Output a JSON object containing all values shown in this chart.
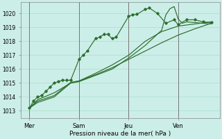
{
  "xlabel": "Pression niveau de la mer( hPa )",
  "ylim": [
    1012.5,
    1020.8
  ],
  "xlim": [
    0,
    96
  ],
  "yticks": [
    1013,
    1014,
    1015,
    1016,
    1017,
    1018,
    1019,
    1020
  ],
  "xtick_positions": [
    4,
    28,
    52,
    76
  ],
  "xtick_labels": [
    "Mer",
    "Sam",
    "Jeu",
    "Ven"
  ],
  "vline_positions": [
    4,
    28,
    52,
    76
  ],
  "bg_color": "#cceee8",
  "grid_color": "#aaddcc",
  "line_color": "#2d6e2d",
  "series1": [
    [
      4,
      1013.2
    ],
    [
      6,
      1013.7
    ],
    [
      8,
      1014.0
    ],
    [
      10,
      1014.1
    ],
    [
      12,
      1014.4
    ],
    [
      14,
      1014.7
    ],
    [
      16,
      1015.0
    ],
    [
      18,
      1015.1
    ],
    [
      20,
      1015.2
    ],
    [
      22,
      1015.2
    ],
    [
      24,
      1015.2
    ],
    [
      28,
      1016.7
    ],
    [
      30,
      1017.0
    ],
    [
      32,
      1017.3
    ],
    [
      36,
      1018.2
    ],
    [
      38,
      1018.3
    ],
    [
      40,
      1018.5
    ],
    [
      42,
      1018.5
    ],
    [
      44,
      1018.2
    ],
    [
      46,
      1018.3
    ],
    [
      52,
      1019.8
    ],
    [
      54,
      1019.9
    ],
    [
      56,
      1019.95
    ],
    [
      60,
      1020.3
    ],
    [
      62,
      1020.4
    ],
    [
      66,
      1020.0
    ],
    [
      70,
      1019.3
    ],
    [
      74,
      1019.55
    ],
    [
      76,
      1019.2
    ],
    [
      80,
      1019.55
    ],
    [
      84,
      1019.55
    ],
    [
      88,
      1019.4
    ],
    [
      92,
      1019.35
    ]
  ],
  "series2": [
    [
      4,
      1013.2
    ],
    [
      8,
      1013.8
    ],
    [
      16,
      1014.3
    ],
    [
      24,
      1015.0
    ],
    [
      28,
      1015.15
    ],
    [
      36,
      1015.6
    ],
    [
      44,
      1016.1
    ],
    [
      52,
      1016.7
    ],
    [
      60,
      1017.3
    ],
    [
      68,
      1017.9
    ],
    [
      76,
      1018.45
    ],
    [
      84,
      1018.9
    ],
    [
      92,
      1019.3
    ]
  ],
  "series3": [
    [
      4,
      1013.2
    ],
    [
      8,
      1013.6
    ],
    [
      16,
      1014.0
    ],
    [
      24,
      1015.0
    ],
    [
      28,
      1015.1
    ],
    [
      36,
      1015.55
    ],
    [
      44,
      1016.0
    ],
    [
      52,
      1016.8
    ],
    [
      60,
      1017.7
    ],
    [
      68,
      1018.8
    ],
    [
      70,
      1019.9
    ],
    [
      72,
      1020.35
    ],
    [
      74,
      1020.5
    ],
    [
      76,
      1019.6
    ],
    [
      78,
      1019.3
    ],
    [
      80,
      1019.4
    ],
    [
      84,
      1019.35
    ],
    [
      88,
      1019.3
    ],
    [
      92,
      1019.25
    ]
  ],
  "series4": [
    [
      4,
      1013.2
    ],
    [
      8,
      1013.7
    ],
    [
      16,
      1014.1
    ],
    [
      24,
      1015.05
    ],
    [
      28,
      1015.15
    ],
    [
      36,
      1015.7
    ],
    [
      44,
      1016.3
    ],
    [
      52,
      1017.0
    ],
    [
      60,
      1018.0
    ],
    [
      68,
      1018.7
    ],
    [
      76,
      1019.1
    ],
    [
      84,
      1019.25
    ],
    [
      92,
      1019.4
    ]
  ]
}
